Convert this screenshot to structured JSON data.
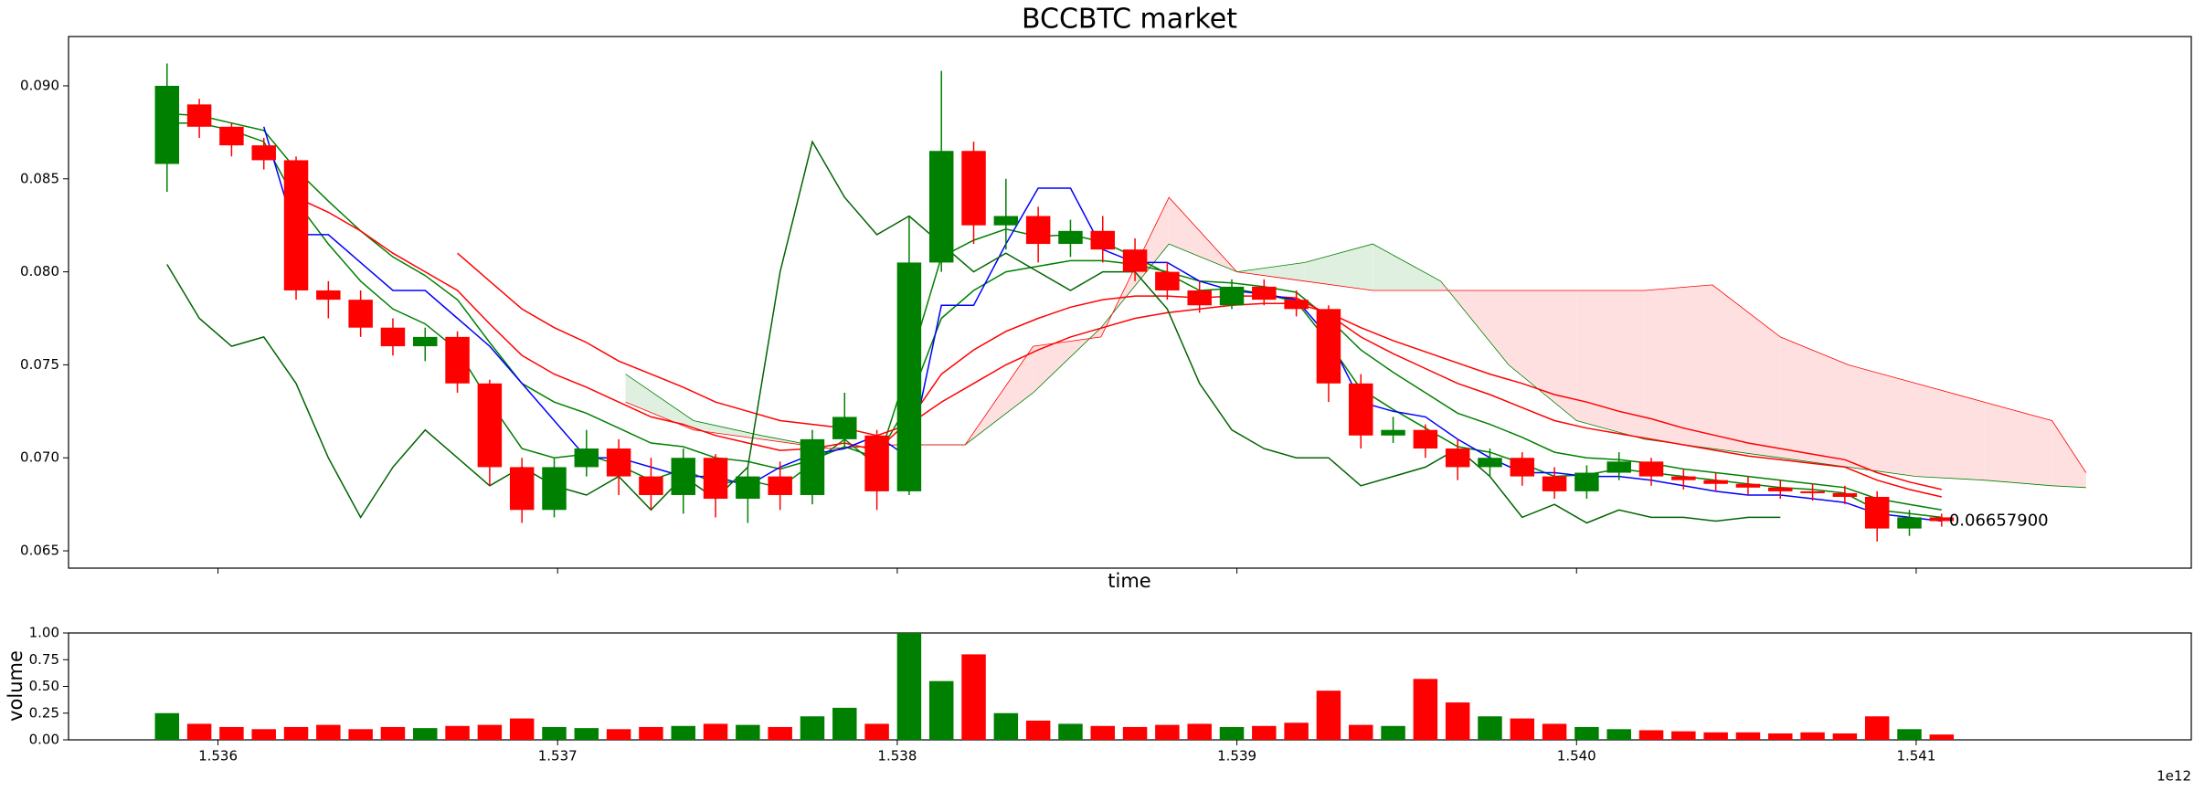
{
  "chart_data": [
    {
      "type": "candlestick",
      "title": "BCCBTC market",
      "xlabel": "time",
      "xlim": [
        1.53556,
        1.54181
      ],
      "xticks": [
        1.536,
        1.537,
        1.538,
        1.539,
        {
          "value": 1.54,
          "label": "1.540"
        },
        1.541
      ],
      "ylim": [
        0.06407,
        0.09265
      ],
      "yticks": [
        0.065,
        {
          "value": 0.07,
          "label": "0.070"
        },
        0.075,
        {
          "value": 0.08,
          "label": "0.080"
        },
        0.085,
        {
          "value": 0.09,
          "label": "0.090"
        }
      ],
      "up_color": "green",
      "down_color": "red",
      "x": [
        1.53585,
        1.535945,
        1.53604,
        1.536135,
        1.53623,
        1.536325,
        1.53642,
        1.536515,
        1.53661,
        1.536705,
        1.5368,
        1.536895,
        1.53699,
        1.537085,
        1.53718,
        1.537275,
        1.53737,
        1.537465,
        1.53756,
        1.537655,
        1.53775,
        1.537845,
        1.53794,
        1.538035,
        1.53813,
        1.538225,
        1.53832,
        1.538415,
        1.53851,
        1.538605,
        1.5387,
        1.538795,
        1.53889,
        1.538985,
        1.53908,
        1.539175,
        1.53927,
        1.539365,
        1.53946,
        1.539555,
        1.53965,
        1.539745,
        1.53984,
        1.539935,
        1.54003,
        1.540125,
        1.54022,
        1.540315,
        1.54041,
        1.540505,
        1.5406,
        1.540695,
        1.54079,
        1.540885,
        1.54098,
        1.541075
      ],
      "open": [
        0.0858,
        0.089,
        0.0878,
        0.0868,
        0.086,
        0.079,
        0.0785,
        0.077,
        0.076,
        0.0765,
        0.074,
        0.0695,
        0.0672,
        0.0695,
        0.0705,
        0.069,
        0.068,
        0.07,
        0.0678,
        0.069,
        0.068,
        0.071,
        0.0712,
        0.0682,
        0.0805,
        0.0865,
        0.0825,
        0.083,
        0.0815,
        0.0822,
        0.0812,
        0.08,
        0.079,
        0.0782,
        0.0792,
        0.0785,
        0.078,
        0.074,
        0.0712,
        0.0715,
        0.0705,
        0.0695,
        0.07,
        0.069,
        0.0682,
        0.0692,
        0.0698,
        0.069,
        0.0688,
        0.0686,
        0.0684,
        0.0682,
        0.0681,
        0.0679,
        0.0662,
        0.0668
      ],
      "high": [
        0.0912,
        0.0893,
        0.088,
        0.0872,
        0.0862,
        0.0795,
        0.079,
        0.0775,
        0.077,
        0.0768,
        0.0742,
        0.07,
        0.07,
        0.0715,
        0.071,
        0.07,
        0.0705,
        0.0702,
        0.0695,
        0.0698,
        0.0715,
        0.0735,
        0.0715,
        0.083,
        0.0908,
        0.087,
        0.085,
        0.0835,
        0.0828,
        0.083,
        0.0818,
        0.0805,
        0.0795,
        0.0796,
        0.0796,
        0.079,
        0.0782,
        0.0745,
        0.0722,
        0.0718,
        0.071,
        0.0705,
        0.0703,
        0.0695,
        0.0696,
        0.0703,
        0.07,
        0.0694,
        0.0692,
        0.069,
        0.0688,
        0.0686,
        0.0685,
        0.0682,
        0.0672,
        0.067
      ],
      "low": [
        0.0843,
        0.0872,
        0.0862,
        0.0855,
        0.0785,
        0.0775,
        0.0765,
        0.0755,
        0.0752,
        0.0735,
        0.0685,
        0.0665,
        0.0668,
        0.069,
        0.068,
        0.0672,
        0.067,
        0.0668,
        0.0665,
        0.0672,
        0.0675,
        0.0705,
        0.0672,
        0.068,
        0.08,
        0.0815,
        0.0812,
        0.0805,
        0.0808,
        0.0805,
        0.0795,
        0.0785,
        0.0778,
        0.078,
        0.0782,
        0.0776,
        0.073,
        0.0705,
        0.0708,
        0.07,
        0.0688,
        0.069,
        0.0685,
        0.0678,
        0.0678,
        0.0688,
        0.0685,
        0.0683,
        0.0682,
        0.068,
        0.0678,
        0.0677,
        0.0675,
        0.0655,
        0.0658,
        0.0663
      ],
      "close": [
        0.09,
        0.0878,
        0.0868,
        0.086,
        0.079,
        0.0785,
        0.077,
        0.076,
        0.0765,
        0.074,
        0.0695,
        0.0672,
        0.0695,
        0.0705,
        0.069,
        0.068,
        0.07,
        0.0678,
        0.069,
        0.068,
        0.071,
        0.0722,
        0.0682,
        0.0805,
        0.0865,
        0.0825,
        0.083,
        0.0815,
        0.0822,
        0.0812,
        0.08,
        0.079,
        0.0782,
        0.0792,
        0.0785,
        0.078,
        0.074,
        0.0712,
        0.0715,
        0.0705,
        0.0695,
        0.07,
        0.069,
        0.0682,
        0.0692,
        0.0698,
        0.069,
        0.0688,
        0.0686,
        0.0684,
        0.0682,
        0.0681,
        0.0679,
        0.0662,
        0.0668,
        0.0666
      ],
      "lines": [
        {
          "color": "green",
          "values": [
            0.088,
            0.088,
            0.0876,
            0.087,
            0.0838,
            0.0815,
            0.0795,
            0.078,
            0.0772,
            0.0758,
            0.073,
            0.0705,
            0.07,
            0.0702,
            0.0696,
            0.0688,
            0.0694,
            0.0686,
            0.0688,
            0.0684,
            0.0697,
            0.071,
            0.0696,
            0.075,
            0.0808,
            0.0817,
            0.0823,
            0.0819,
            0.082,
            0.0816,
            0.0808,
            0.0799,
            0.079,
            0.0791,
            0.0788,
            0.0784,
            0.0762,
            0.0737,
            0.0726,
            0.0716,
            0.0706,
            0.0703,
            0.0697,
            0.069,
            0.0691,
            0.0694,
            0.0692,
            0.069,
            0.0688,
            0.0686,
            0.0684,
            0.0683,
            0.0681,
            0.0672,
            0.067,
            0.0668
          ]
        },
        {
          "color": "green",
          "values": [
            0.0885,
            0.0884,
            0.088,
            0.0876,
            0.0855,
            0.0838,
            0.0822,
            0.0808,
            0.0798,
            0.0785,
            0.0762,
            0.074,
            0.073,
            0.0724,
            0.0716,
            0.0708,
            0.0706,
            0.07,
            0.0698,
            0.0694,
            0.0699,
            0.0706,
            0.07,
            0.073,
            0.0775,
            0.079,
            0.08,
            0.0803,
            0.0806,
            0.0806,
            0.0804,
            0.08,
            0.0795,
            0.0794,
            0.0792,
            0.0789,
            0.0775,
            0.0758,
            0.0746,
            0.0735,
            0.0724,
            0.0718,
            0.0711,
            0.0703,
            0.07,
            0.0699,
            0.0697,
            0.0694,
            0.0692,
            0.069,
            0.0688,
            0.0686,
            0.0684,
            0.0678,
            0.0675,
            0.0672
          ]
        },
        {
          "color": "red",
          "values": [
            null,
            null,
            null,
            null,
            0.084,
            0.0832,
            0.0822,
            0.081,
            0.08,
            0.079,
            0.0772,
            0.0755,
            0.0745,
            0.0738,
            0.073,
            0.0722,
            0.0718,
            0.0712,
            0.0708,
            0.0704,
            0.0705,
            0.0708,
            0.0704,
            0.072,
            0.0745,
            0.0758,
            0.0768,
            0.0775,
            0.0781,
            0.0785,
            0.0787,
            0.0787,
            0.0786,
            0.0787,
            0.0787,
            0.0786,
            0.0777,
            0.0765,
            0.0756,
            0.0748,
            0.074,
            0.0734,
            0.0727,
            0.072,
            0.0716,
            0.0713,
            0.071,
            0.0707,
            0.0704,
            0.0701,
            0.0699,
            0.0697,
            0.0695,
            0.0688,
            0.0683,
            0.0679
          ]
        },
        {
          "color": "red",
          "values": [
            null,
            null,
            null,
            null,
            null,
            null,
            null,
            null,
            null,
            0.081,
            0.0795,
            0.078,
            0.077,
            0.0762,
            0.0752,
            0.0745,
            0.0738,
            0.073,
            0.0725,
            0.072,
            0.0718,
            0.0716,
            0.0712,
            0.0718,
            0.073,
            0.074,
            0.075,
            0.0758,
            0.0765,
            0.077,
            0.0775,
            0.0778,
            0.078,
            0.0782,
            0.0783,
            0.0783,
            0.0778,
            0.077,
            0.0763,
            0.0757,
            0.0751,
            0.0745,
            0.074,
            0.0734,
            0.073,
            0.0725,
            0.0721,
            0.0716,
            0.0712,
            0.0708,
            0.0705,
            0.0702,
            0.0699,
            0.0692,
            0.0687,
            0.0683
          ]
        },
        {
          "color": "blue",
          "values": [
            null,
            null,
            null,
            0.0878,
            0.082,
            0.082,
            0.0805,
            0.079,
            0.079,
            0.0775,
            0.076,
            0.074,
            0.072,
            0.07,
            0.07,
            0.0695,
            0.069,
            0.069,
            0.0685,
            0.0695,
            0.0702,
            0.0705,
            0.0712,
            0.07,
            0.0782,
            0.0782,
            0.0815,
            0.0845,
            0.0845,
            0.0812,
            0.0805,
            0.0805,
            0.0795,
            0.079,
            0.0788,
            0.0785,
            0.0765,
            0.073,
            0.0725,
            0.0722,
            0.071,
            0.07,
            0.0692,
            0.0692,
            0.069,
            0.069,
            0.0688,
            0.0685,
            0.0682,
            0.068,
            0.068,
            0.0678,
            0.0676,
            0.067,
            0.0668,
            0.0666
          ]
        },
        {
          "color": "darkgreen",
          "values": [
            0.0804,
            0.0775,
            0.076,
            0.0765,
            0.074,
            0.07,
            0.0668,
            0.0695,
            0.0715,
            0.07,
            0.0685,
            0.0695,
            0.0685,
            0.068,
            0.069,
            0.0672,
            0.069,
            0.0678,
            0.0695,
            0.08,
            0.087,
            0.084,
            0.082,
            0.083,
            0.0815,
            0.08,
            0.081,
            0.08,
            0.079,
            0.08,
            0.08,
            0.078,
            0.074,
            0.0715,
            0.0705,
            0.07,
            0.07,
            0.0685,
            0.069,
            0.0695,
            0.0705,
            0.069,
            0.0668,
            0.0675,
            0.0665,
            0.0672,
            0.0668,
            0.0668,
            0.0666,
            0.0668,
            0.0668,
            null,
            null,
            null,
            null,
            null
          ]
        }
      ],
      "cloud": {
        "x": [
          1.5372,
          1.5374,
          1.5376,
          1.5378,
          1.538,
          1.5382,
          1.5384,
          1.5386,
          1.5388,
          1.539,
          1.5392,
          1.5394,
          1.5396,
          1.5398,
          1.54,
          1.5402,
          1.5404,
          1.5406,
          1.5408,
          1.541,
          1.5412,
          1.5414,
          1.5415
        ],
        "span_a": {
          "color": "green",
          "values": [
            0.0745,
            0.072,
            0.0712,
            0.0705,
            0.0707,
            0.0707,
            0.0735,
            0.077,
            0.0815,
            0.08,
            0.0805,
            0.0815,
            0.0795,
            0.075,
            0.072,
            0.071,
            0.0705,
            0.07,
            0.0695,
            0.069,
            0.0688,
            0.0685,
            0.0684
          ]
        },
        "span_b": {
          "color": "red",
          "values": [
            0.073,
            0.0715,
            0.071,
            0.0705,
            0.0707,
            0.0707,
            0.076,
            0.0765,
            0.084,
            0.08,
            0.0795,
            0.079,
            0.079,
            0.079,
            0.079,
            0.079,
            0.0793,
            0.0765,
            0.075,
            0.074,
            0.073,
            0.072,
            0.0692
          ]
        },
        "fill_up": "#e0f0e0",
        "fill_down": "#ffe0e0"
      },
      "annotations": [
        {
          "text": "0.06657900"
        }
      ]
    },
    {
      "type": "bar",
      "ylabel": "volume",
      "x_offset_label": "1e12",
      "ylim": [
        0,
        1
      ],
      "yticks": [
        {
          "value": 0,
          "label": "0.00"
        },
        0.25,
        {
          "value": 0.5,
          "label": "0.50"
        },
        0.75,
        {
          "value": 1,
          "label": "1.00"
        }
      ],
      "values": [
        0.25,
        0.15,
        0.12,
        0.1,
        0.12,
        0.14,
        0.1,
        0.12,
        0.11,
        0.13,
        0.14,
        0.2,
        0.12,
        0.11,
        0.1,
        0.12,
        0.13,
        0.15,
        0.14,
        0.12,
        0.22,
        0.3,
        0.15,
        1.0,
        0.55,
        0.8,
        0.25,
        0.18,
        0.15,
        0.13,
        0.12,
        0.14,
        0.15,
        0.12,
        0.13,
        0.16,
        0.46,
        0.14,
        0.13,
        0.57,
        0.35,
        0.22,
        0.2,
        0.15,
        0.12,
        0.1,
        0.09,
        0.08,
        0.07,
        0.07,
        0.06,
        0.07,
        0.06,
        0.22,
        0.1,
        0.05
      ]
    }
  ]
}
